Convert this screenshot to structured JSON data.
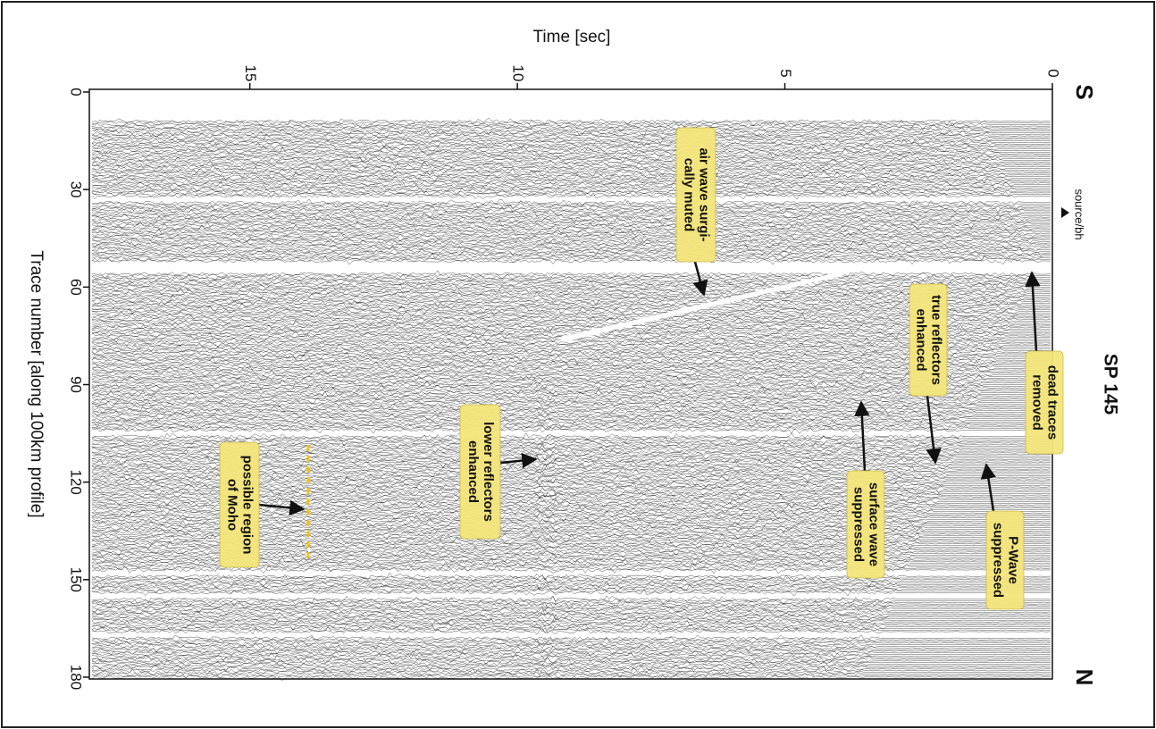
{
  "chart_data": {
    "type": "seismic",
    "xlabel": "Time [sec]",
    "ylabel": "Trace number [along 100km profile]",
    "xlim": [
      0,
      18
    ],
    "xticks": [
      0,
      5,
      10,
      15
    ],
    "ylim": [
      0,
      180
    ],
    "yticks": [
      0,
      30,
      60,
      90,
      120,
      150,
      180
    ],
    "top_label": "S",
    "bottom_label": "N",
    "title": "SP 145",
    "source_label": "source/bh",
    "annotations": [
      {
        "lines": [
          "air wave surgi-",
          "cally muted"
        ]
      },
      {
        "lines": [
          "dead traces",
          "removed"
        ]
      },
      {
        "lines": [
          "true reflectors",
          "enhanced"
        ]
      },
      {
        "lines": [
          "P-Wave",
          "suppressed"
        ]
      },
      {
        "lines": [
          "surface wave",
          "suppressed"
        ]
      },
      {
        "lines": [
          "lower reflectors",
          "enhanced"
        ]
      },
      {
        "lines": [
          "possible region",
          "of Moho"
        ]
      }
    ]
  }
}
